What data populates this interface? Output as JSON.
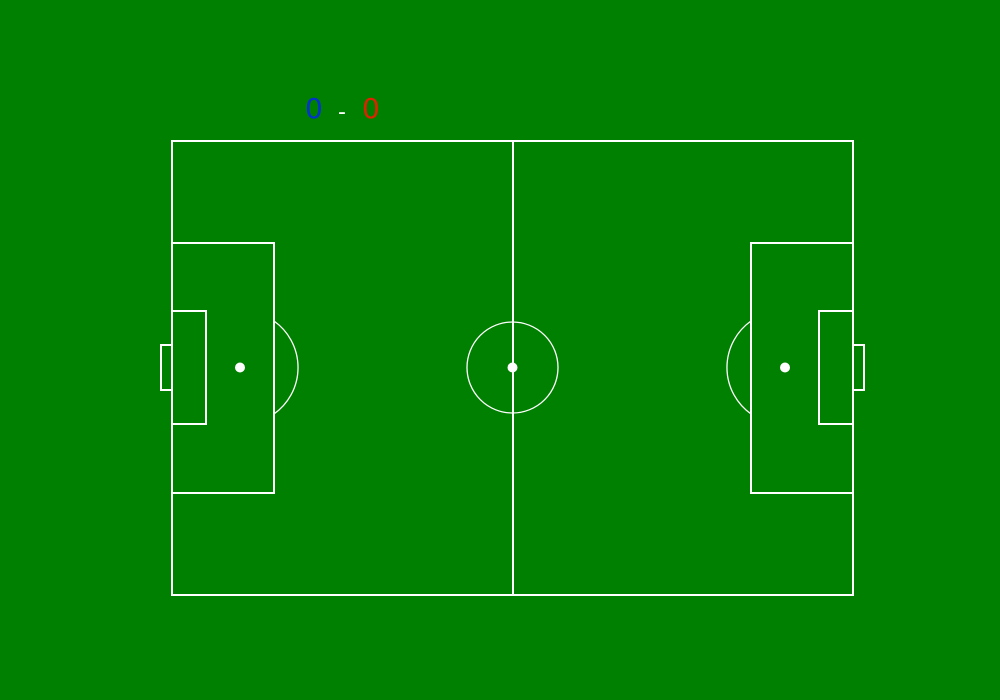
{
  "colors": {
    "grass": "#008000",
    "lines": "#ffffff",
    "home": "#0033cc",
    "away": "#dd2200",
    "separator": "#ffffff"
  },
  "scoreboard": {
    "home_score": "0",
    "separator": "-",
    "away_score": "0"
  }
}
